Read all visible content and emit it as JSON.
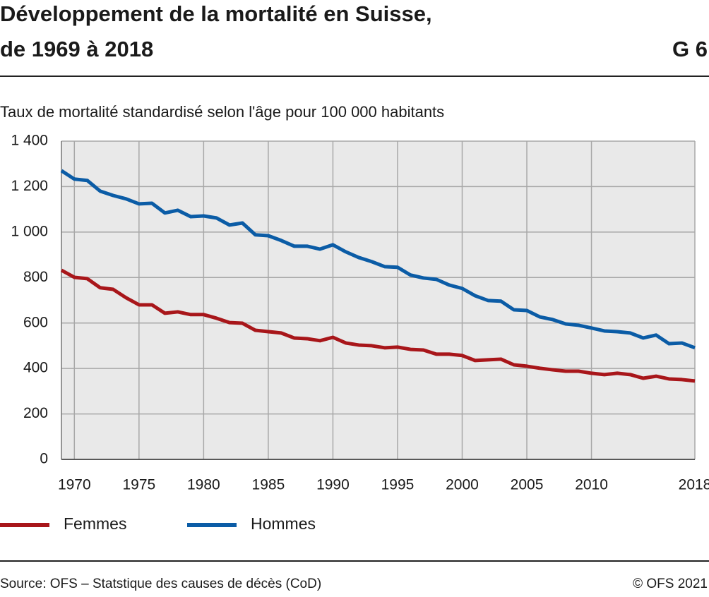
{
  "chart_data": {
    "type": "line",
    "title": [
      "Développement de la mortalité en Suisse,",
      "de 1969 à 2018"
    ],
    "figure_label": "G 6",
    "subtitle": "Taux de mortalité standardisé selon l'âge pour 100 000 habitants",
    "source": "Source: OFS – Statstique des causes de décès (CoD)",
    "copyright": "© OFS 2021",
    "x": [
      1969,
      1970,
      1971,
      1972,
      1973,
      1974,
      1975,
      1976,
      1977,
      1978,
      1979,
      1980,
      1981,
      1982,
      1983,
      1984,
      1985,
      1986,
      1987,
      1988,
      1989,
      1990,
      1991,
      1992,
      1993,
      1994,
      1995,
      1996,
      1997,
      1998,
      1999,
      2000,
      2001,
      2002,
      2003,
      2004,
      2005,
      2006,
      2007,
      2008,
      2009,
      2010,
      2011,
      2012,
      2013,
      2014,
      2015,
      2016,
      2017,
      2018
    ],
    "series": [
      {
        "name": "Femmes",
        "color": "#a8161a",
        "values": [
          832,
          801,
          795,
          755,
          748,
          711,
          680,
          680,
          643,
          649,
          637,
          637,
          621,
          602,
          599,
          568,
          562,
          556,
          534,
          531,
          522,
          537,
          512,
          503,
          500,
          491,
          494,
          484,
          481,
          463,
          463,
          457,
          435,
          438,
          441,
          416,
          410,
          401,
          394,
          388,
          388,
          379,
          373,
          379,
          373,
          357,
          366,
          354,
          351,
          345
        ]
      },
      {
        "name": "Hommes",
        "color": "#0b5ca6",
        "values": [
          1270,
          1233,
          1227,
          1180,
          1161,
          1146,
          1124,
          1127,
          1084,
          1096,
          1068,
          1071,
          1062,
          1031,
          1040,
          988,
          984,
          963,
          938,
          938,
          925,
          944,
          913,
          888,
          870,
          848,
          845,
          811,
          798,
          792,
          767,
          752,
          720,
          699,
          696,
          658,
          655,
          627,
          615,
          596,
          590,
          578,
          565,
          562,
          556,
          534,
          547,
          509,
          512,
          491
        ]
      }
    ],
    "xlim": [
      1969,
      2018
    ],
    "xticks": [
      1970,
      1975,
      1980,
      1985,
      1990,
      1995,
      2000,
      2005,
      2010,
      2018
    ],
    "ylim": [
      0,
      1400
    ],
    "yticks": [
      0,
      200,
      400,
      600,
      800,
      {
        "value": 1000,
        "label": "1 000"
      },
      {
        "value": 1200,
        "label": "1 200"
      },
      {
        "value": 1400,
        "label": "1 400"
      }
    ],
    "grid": true,
    "legend": "bottom"
  }
}
